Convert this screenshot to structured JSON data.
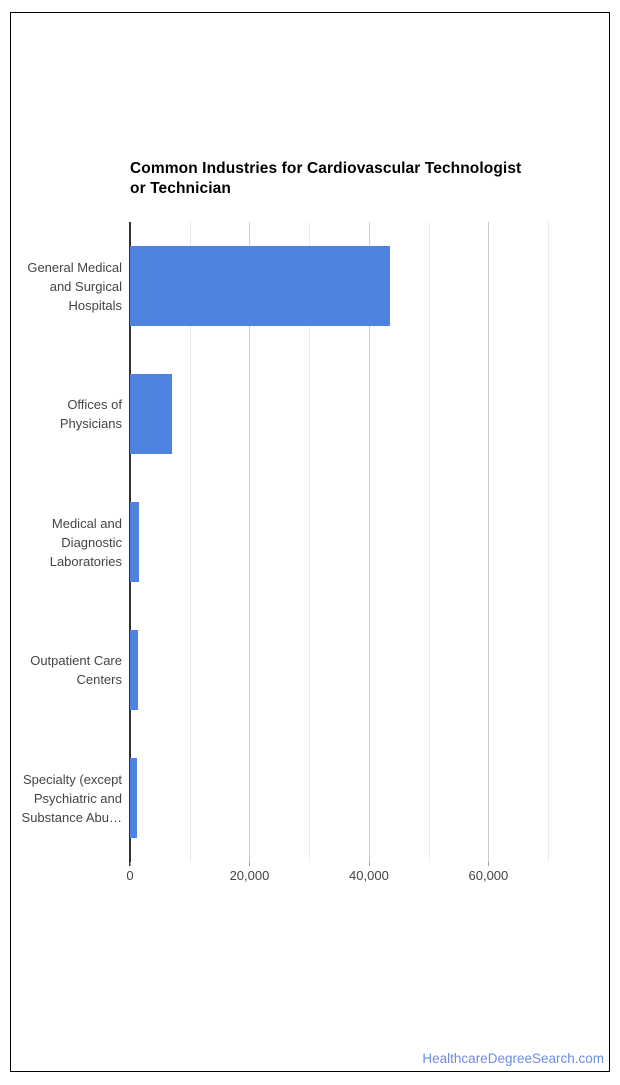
{
  "chart_data": {
    "type": "bar",
    "orientation": "horizontal",
    "title": "Common Industries for Cardiovascular Technologist or Technician",
    "title_lines": [
      "Common Industries for Cardiovascular Technologist",
      "or Technician"
    ],
    "categories": [
      "General Medical and Surgical Hospitals",
      "Offices of Physicians",
      "Medical and Diagnostic Laboratories",
      "Outpatient Care Centers",
      "Specialty (except Psychiatric and Substance Abu…"
    ],
    "category_label_lines": [
      [
        "General Medical",
        "and Surgical",
        "Hospitals"
      ],
      [
        "Offices of",
        "Physicians"
      ],
      [
        "Medical and",
        "Diagnostic",
        "Laboratories"
      ],
      [
        "Outpatient Care",
        "Centers"
      ],
      [
        "Specialty (except",
        "Psychiatric and",
        "Substance Abu…"
      ]
    ],
    "values": [
      43500,
      7000,
      1500,
      1400,
      1100
    ],
    "xlabel": "",
    "ylabel": "",
    "xlim": [
      0,
      75000
    ],
    "x_major_ticks": [
      {
        "value": 0,
        "label": "0"
      },
      {
        "value": 20000,
        "label": "20,000"
      },
      {
        "value": 40000,
        "label": "40,000"
      },
      {
        "value": 60000,
        "label": "60,000"
      }
    ],
    "x_minor_gridlines": [
      10000,
      30000,
      50000,
      70000
    ],
    "grid": true,
    "legend": "none",
    "bar_color": "#5083e1"
  },
  "colors": {
    "bar": "#5083e1",
    "major_gridline": "#cccccc",
    "minor_gridline": "#ebebeb",
    "axis_line": "#333333",
    "text": "#444444",
    "title_text": "#000000",
    "footer_link": "#6d8de0",
    "frame_border": "#000000",
    "background": "#ffffff"
  },
  "footer": {
    "text": "HealthcareDegreeSearch.com"
  }
}
